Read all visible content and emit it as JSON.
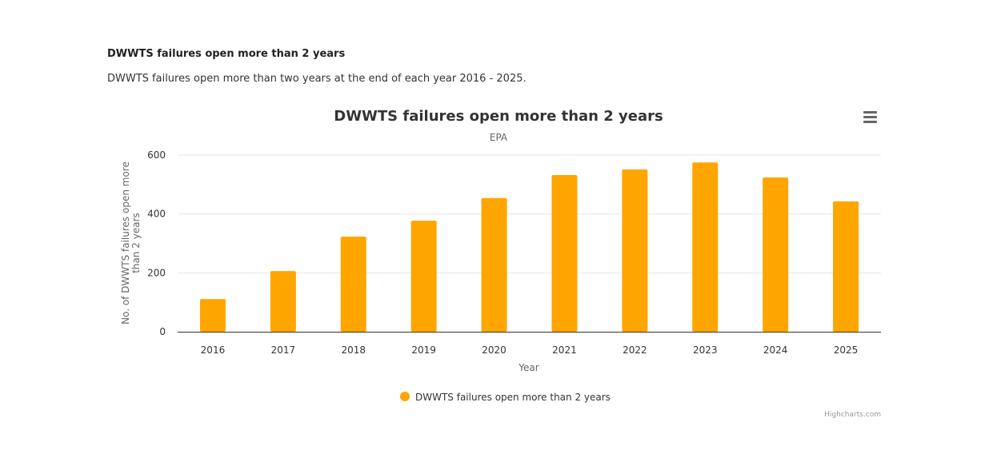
{
  "intro": {
    "heading": "DWWTS failures open more than 2 years",
    "description": "DWWTS failures open more than two years at the end of each year 2016 - 2025."
  },
  "credits": "Highcharts.com",
  "menu_icon": "hamburger-menu-icon",
  "colors": {
    "series": "#ffa500",
    "grid": "#e6e6e6",
    "axis": "#333333"
  },
  "chart_data": {
    "type": "bar",
    "title": "DWWTS failures open more than 2 years",
    "subtitle": "EPA",
    "xlabel": "Year",
    "ylabel": "No. of DWWTS failures open more than 2 years",
    "categories": [
      "2016",
      "2017",
      "2018",
      "2019",
      "2020",
      "2021",
      "2022",
      "2023",
      "2024",
      "2025"
    ],
    "series": [
      {
        "name": "DWWTS failures open more than 2 years",
        "values": [
          111,
          206,
          323,
          377,
          454,
          532,
          551,
          575,
          524,
          443
        ]
      }
    ],
    "yticks": [
      0,
      200,
      400,
      600
    ],
    "ylim": [
      0,
      600
    ],
    "grid": true,
    "legend": "bottom-center"
  }
}
